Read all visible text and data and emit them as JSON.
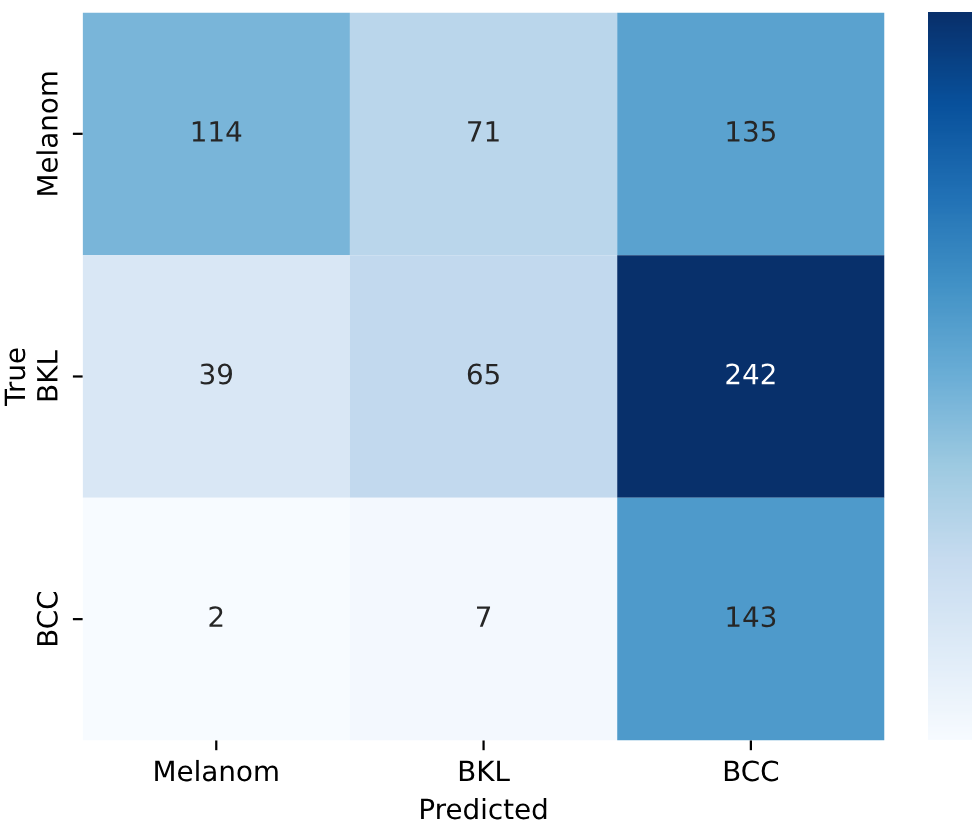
{
  "chart_data": {
    "type": "heatmap",
    "xlabel": "Predicted",
    "ylabel": "True",
    "categories": [
      "Melanom",
      "BKL",
      "BCC"
    ],
    "y_categories": [
      "Melanom",
      "BKL",
      "BCC"
    ],
    "cells": [
      [
        114,
        71,
        135
      ],
      [
        39,
        65,
        242
      ],
      [
        2,
        7,
        143
      ]
    ],
    "data_labels": true
  }
}
